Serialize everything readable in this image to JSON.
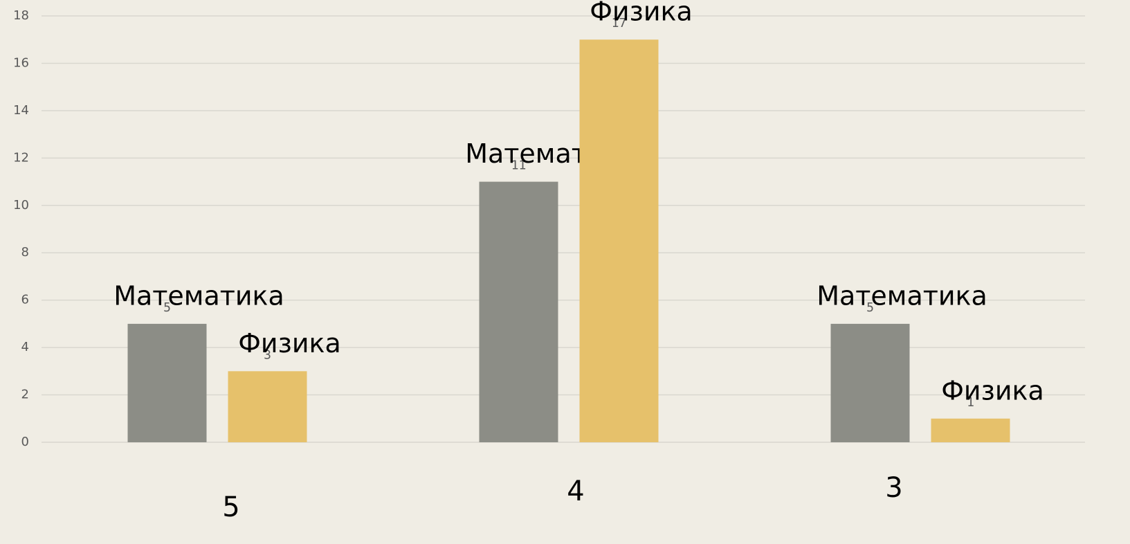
{
  "chart_data": {
    "type": "bar",
    "categories": [
      "5",
      "4",
      "3"
    ],
    "series": [
      {
        "name": "Математика",
        "color": "#8c8d86",
        "values": [
          5,
          11,
          5
        ]
      },
      {
        "name": "Физика",
        "color": "#e6c16b",
        "values": [
          3,
          17,
          1
        ]
      }
    ],
    "ylim": [
      0,
      18
    ],
    "yticks": [
      0,
      2,
      4,
      6,
      8,
      10,
      12,
      14,
      16,
      18
    ],
    "grid": true
  }
}
